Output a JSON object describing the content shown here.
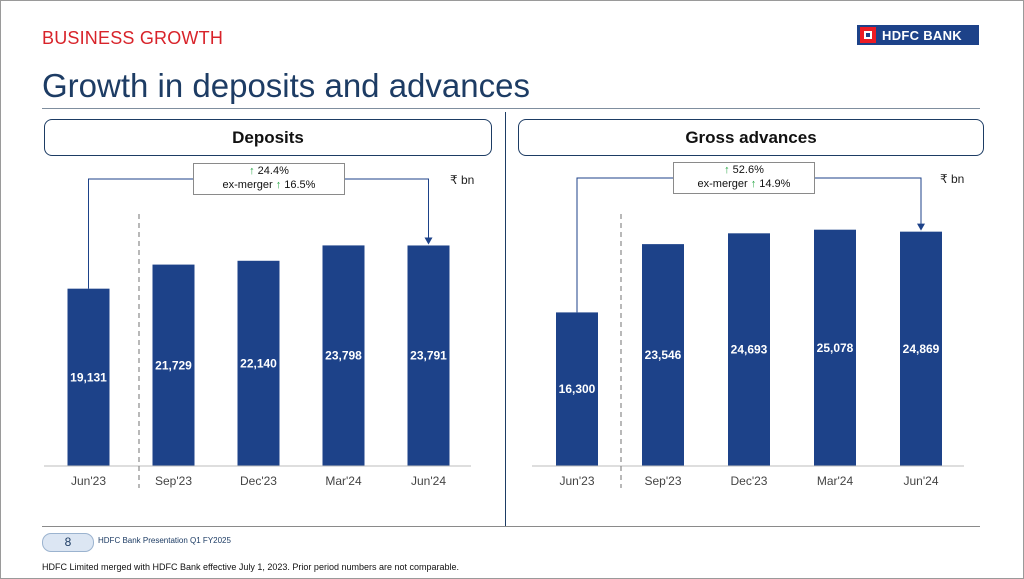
{
  "header": {
    "section": "BUSINESS GROWTH",
    "logo_text": "HDFC BANK",
    "title": "Growth in deposits and advances"
  },
  "colors": {
    "bar": "#1d4289",
    "accent_red": "#d8232a",
    "arrow_up": "#28a745"
  },
  "chart_data": [
    {
      "type": "bar",
      "title": "Deposits",
      "unit": "₹ bn",
      "categories": [
        "Jun'23",
        "Sep'23",
        "Dec'23",
        "Mar'24",
        "Jun'24"
      ],
      "values": [
        19131,
        21729,
        22140,
        23798,
        23791
      ],
      "value_labels": [
        "19,131",
        "21,729",
        "22,140",
        "23,798",
        "23,791"
      ],
      "growth": {
        "total": "24.4%",
        "ex_merger_label": "ex-merger",
        "ex_merger": "16.5%"
      },
      "ylim": [
        0,
        26000
      ],
      "grid": false
    },
    {
      "type": "bar",
      "title": "Gross advances",
      "unit": "₹ bn",
      "categories": [
        "Jun'23",
        "Sep'23",
        "Dec'23",
        "Mar'24",
        "Jun'24"
      ],
      "values": [
        16300,
        23546,
        24693,
        25078,
        24869
      ],
      "value_labels": [
        "16,300",
        "23,546",
        "24,693",
        "25,078",
        "24,869"
      ],
      "growth": {
        "total": "52.6%",
        "ex_merger_label": "ex-merger",
        "ex_merger": "14.9%"
      },
      "ylim": [
        0,
        26000
      ],
      "grid": false
    }
  ],
  "footer": {
    "page_number": "8",
    "presentation": "HDFC Bank Presentation Q1 FY2025",
    "note": "HDFC Limited merged with HDFC Bank effective July 1, 2023. Prior period numbers are not comparable."
  }
}
